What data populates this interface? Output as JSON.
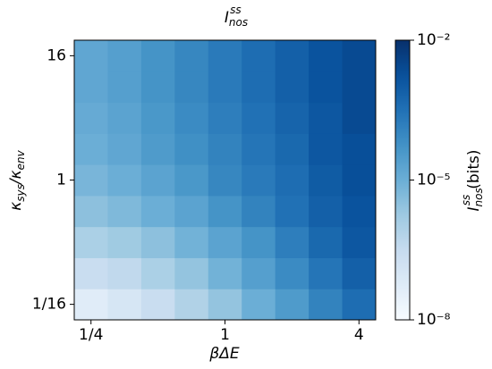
{
  "chart_data": {
    "type": "heatmap",
    "title": {
      "main": "I",
      "sub": "nos",
      "sup": "ss"
    },
    "x_label": "βΔE",
    "y_label": {
      "main": "κ",
      "sub": "sys",
      "mid": "/κ",
      "sub2": "env"
    },
    "x_categories": [
      "1/4",
      null,
      null,
      null,
      "1",
      null,
      null,
      null,
      "4"
    ],
    "y_categories": [
      "1/16",
      null,
      null,
      null,
      "1",
      null,
      null,
      null,
      "16"
    ],
    "z": [
      [
        5e-08,
        1e-07,
        2.5e-07,
        8e-07,
        2.5e-06,
        1e-05,
        3.2e-05,
        0.000126,
        0.0004
      ],
      [
        2.5e-07,
        4e-07,
        1e-06,
        2.5e-06,
        8e-06,
        2.5e-05,
        8e-05,
        0.00025,
        0.0008
      ],
      [
        1e-06,
        1.6e-06,
        3.2e-06,
        8e-06,
        2e-05,
        5e-05,
        0.00016,
        0.0005,
        0.00126
      ],
      [
        3.2e-06,
        5e-06,
        1e-05,
        2e-05,
        5e-05,
        0.000126,
        0.00032,
        0.0008,
        0.0016
      ],
      [
        6.3e-06,
        1e-05,
        2e-05,
        4e-05,
        0.0001,
        0.0002,
        0.0004,
        0.001,
        0.002
      ],
      [
        1e-05,
        1.6e-05,
        3.2e-05,
        6.3e-05,
        0.000126,
        0.00025,
        0.0005,
        0.00126,
        0.002
      ],
      [
        1.26e-05,
        2e-05,
        4e-05,
        8e-05,
        0.00016,
        0.00032,
        0.00063,
        0.00126,
        0.0025
      ],
      [
        1.6e-05,
        2.5e-05,
        5e-05,
        0.0001,
        0.0002,
        0.0004,
        0.0008,
        0.0016,
        0.0025
      ],
      [
        1.6e-05,
        2.5e-05,
        5e-05,
        0.0001,
        0.0002,
        0.0004,
        0.0008,
        0.0016,
        0.0025
      ]
    ],
    "colormap": "Blues",
    "colorbar": {
      "label": {
        "main": "I",
        "sub": "nos",
        "sup": "ss",
        "unit": "(bits)"
      },
      "lim": [
        1e-08,
        0.01
      ],
      "log": true,
      "ticks": [
        {
          "value": 1e-08,
          "label": "10⁻⁸"
        },
        {
          "value": 1e-05,
          "label": "10⁻⁵"
        },
        {
          "value": 0.01,
          "label": "10⁻²"
        }
      ]
    }
  }
}
